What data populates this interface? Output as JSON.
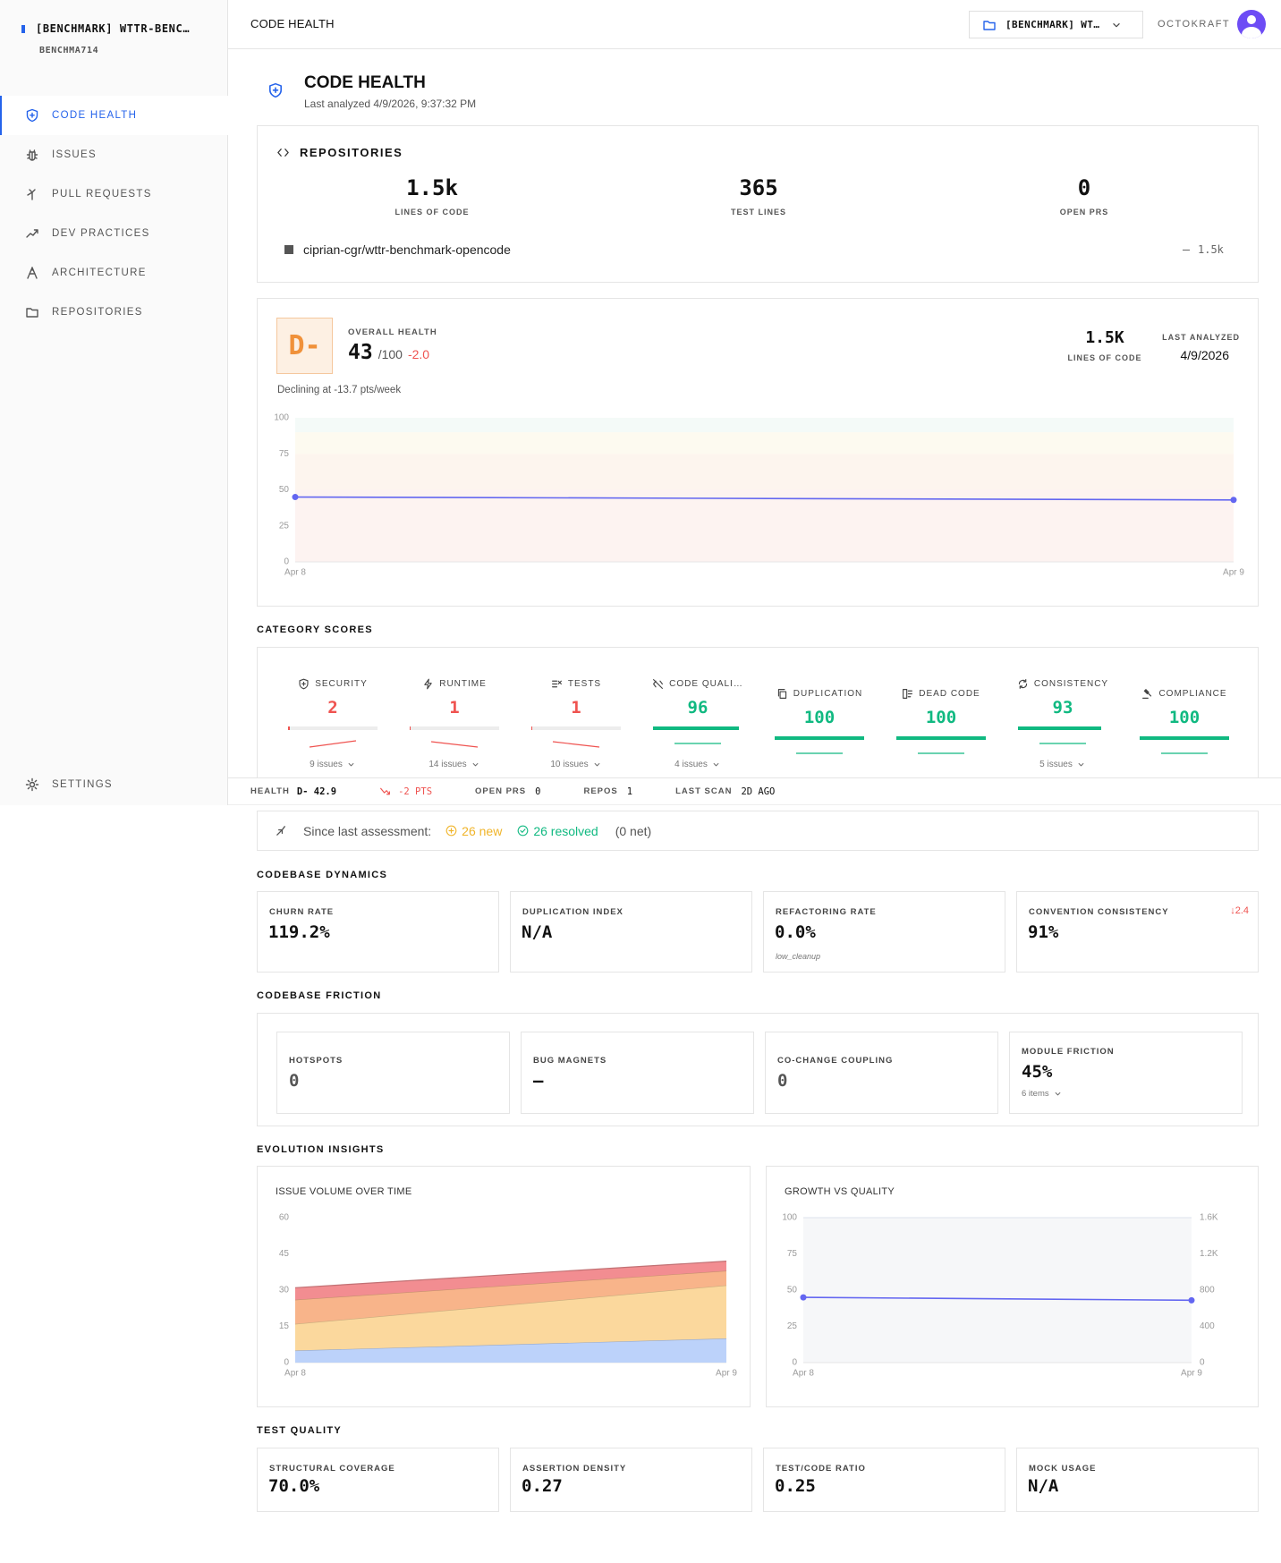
{
  "sidebar": {
    "workspace": "[BENCHMARK] WTTR-BENC…",
    "workspace_id": "BENCHMA714",
    "nav": [
      "CODE HEALTH",
      "ISSUES",
      "PULL REQUESTS",
      "DEV PRACTICES",
      "ARCHITECTURE",
      "REPOSITORIES"
    ],
    "settings": "SETTINGS"
  },
  "topbar": {
    "title": "CODE HEALTH",
    "workspace": "[BENCHMARK] WT…",
    "org": "OCTOKRAFT"
  },
  "header": {
    "title": "CODE HEALTH",
    "subtitle": "Last analyzed 4/9/2026, 9:37:32 PM"
  },
  "repositories": {
    "title": "REPOSITORIES",
    "stats": [
      {
        "value": "1.5k",
        "label": "LINES OF CODE"
      },
      {
        "value": 365,
        "label": "TEST LINES"
      },
      {
        "value": 0,
        "label": "OPEN PRS"
      }
    ],
    "repos": [
      {
        "name": "ciprian-cgr/wttr-benchmark-opencode",
        "lines": "1.5k"
      }
    ]
  },
  "health": {
    "grade": "D-",
    "label": "OVERALL HEALTH",
    "score": 43,
    "max": "/100",
    "delta": "-2.0",
    "lines_value": "1.5K",
    "lines_label": "LINES OF CODE",
    "last_label": "LAST ANALYZED",
    "last_value": "4/9/2026",
    "trend": "Declining at -13.7 pts/week"
  },
  "category_scores": {
    "title": "CATEGORY SCORES",
    "xlim": [
      0,
      100
    ],
    "items": [
      {
        "name": "SECURITY",
        "score": 2,
        "issues": "9 issues",
        "color": "#ef5350"
      },
      {
        "name": "RUNTIME",
        "score": 1,
        "issues": "14 issues",
        "color": "#ef5350"
      },
      {
        "name": "TESTS",
        "score": 1,
        "issues": "10 issues",
        "color": "#ef5350"
      },
      {
        "name": "CODE QUALI…",
        "score": 96,
        "issues": "4 issues",
        "color": "#10b981"
      },
      {
        "name": "DUPLICATION",
        "score": 100,
        "color": "#10b981"
      },
      {
        "name": "DEAD CODE",
        "score": 100,
        "color": "#10b981"
      },
      {
        "name": "CONSISTENCY",
        "score": 93,
        "issues": "5 issues",
        "color": "#10b981"
      },
      {
        "name": "COMPLIANCE",
        "score": 100,
        "color": "#10b981"
      }
    ]
  },
  "status_bar": {
    "health_label": "HEALTH",
    "health_value": "D- 42.9",
    "delta": "-2 PTS",
    "open_prs_label": "OPEN PRS",
    "open_prs": 0,
    "repos_label": "REPOS",
    "repos": 1,
    "last_scan_label": "LAST SCAN",
    "last_scan": "2D AGO"
  },
  "since": {
    "label": "Since last assessment:",
    "new": "26 new",
    "resolved": "26 resolved",
    "net": "(0 net)"
  },
  "dynamics": {
    "title": "CODEBASE DYNAMICS",
    "cards": [
      {
        "label": "CHURN RATE",
        "value": "119.2%"
      },
      {
        "label": "DUPLICATION INDEX",
        "value": "N/A"
      },
      {
        "label": "REFACTORING RATE",
        "value": "0.0%",
        "note": "low_cleanup"
      },
      {
        "label": "CONVENTION CONSISTENCY",
        "value": "91%",
        "delta": "↓2.4"
      }
    ]
  },
  "friction": {
    "title": "CODEBASE FRICTION",
    "cards": [
      {
        "label": "HOTSPOTS",
        "value": 0
      },
      {
        "label": "BUG MAGNETS",
        "value": "—"
      },
      {
        "label": "CO-CHANGE COUPLING",
        "value": 0
      },
      {
        "label": "MODULE FRICTION",
        "value": "45%",
        "note": "6 items"
      }
    ]
  },
  "evolution": {
    "title": "EVOLUTION INSIGHTS"
  },
  "test_quality": {
    "title": "TEST QUALITY",
    "cards": [
      {
        "label": "STRUCTURAL COVERAGE",
        "value": "70.0%"
      },
      {
        "label": "ASSERTION DENSITY",
        "value": 0.27
      },
      {
        "label": "TEST/CODE RATIO",
        "value": 0.25
      },
      {
        "label": "MOCK USAGE",
        "value": "N/A"
      }
    ]
  },
  "chart_data": [
    {
      "type": "line",
      "x": [
        "Apr 8",
        "Apr 9"
      ],
      "values": [
        45,
        43
      ],
      "color": "#6366f1",
      "ylim": [
        0,
        100
      ],
      "yticks": [
        0,
        25,
        50,
        75,
        100
      ],
      "bands": [
        {
          "from": 0,
          "to": 50,
          "color": "#fdf3f1"
        },
        {
          "from": 50,
          "to": 75,
          "color": "#fdf5ee"
        },
        {
          "from": 75,
          "to": 90,
          "color": "#fdfaf0"
        },
        {
          "from": 90,
          "to": 100,
          "color": "#f4faf8"
        }
      ]
    },
    {
      "type": "stacked_area",
      "title": "ISSUE VOLUME OVER TIME",
      "x": [
        "Apr 8",
        "Apr 9"
      ],
      "series": [
        {
          "color": "#bcd2fa",
          "values": [
            5,
            10
          ]
        },
        {
          "color": "#fbd89d",
          "values": [
            11,
            22
          ]
        },
        {
          "color": "#f8b48a",
          "values": [
            10,
            6
          ]
        },
        {
          "color": "#f28d91",
          "values": [
            5,
            4
          ]
        }
      ],
      "ylim": [
        0,
        60
      ],
      "yticks": [
        0,
        15,
        30,
        45,
        60
      ]
    },
    {
      "type": "line",
      "title": "GROWTH VS QUALITY",
      "x": [
        "Apr 8",
        "Apr 9"
      ],
      "series": [
        {
          "color": "#6366f1",
          "values": [
            45,
            43
          ]
        }
      ],
      "ylim": [
        0,
        100
      ],
      "yticks": [
        0,
        25,
        50,
        75,
        100
      ],
      "y2lim": [
        0,
        1600
      ],
      "y2ticks": [
        0,
        400,
        800,
        {
          "value": 1200,
          "label": "1.2K"
        },
        {
          "value": 1600,
          "label": "1.6K"
        }
      ]
    }
  ]
}
